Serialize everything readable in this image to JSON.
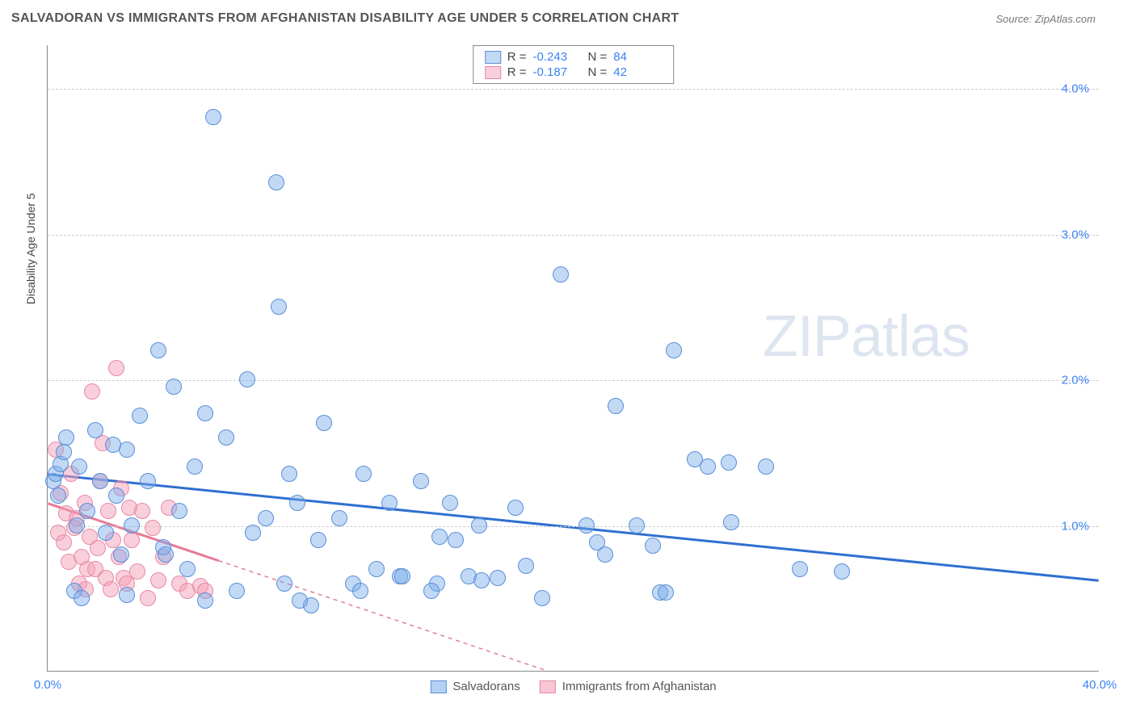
{
  "title": "SALVADORAN VS IMMIGRANTS FROM AFGHANISTAN DISABILITY AGE UNDER 5 CORRELATION CHART",
  "source_prefix": "Source: ",
  "source_name": "ZipAtlas.com",
  "y_axis_label": "Disability Age Under 5",
  "watermark": {
    "a": "ZIP",
    "b": "atlas"
  },
  "chart": {
    "type": "scatter",
    "background_color": "#ffffff",
    "grid_color": "#cccccc",
    "axis_color": "#888888",
    "tick_color": "#3b82f6",
    "tick_fontsize": 15,
    "label_fontsize": 14,
    "xlim": [
      0,
      40
    ],
    "ylim": [
      0,
      4.3
    ],
    "xticks": [
      {
        "v": 0,
        "label": "0.0%"
      },
      {
        "v": 40,
        "label": "40.0%"
      }
    ],
    "yticks": [
      {
        "v": 1.0,
        "label": "1.0%"
      },
      {
        "v": 2.0,
        "label": "2.0%"
      },
      {
        "v": 3.0,
        "label": "3.0%"
      },
      {
        "v": 4.0,
        "label": "4.0%"
      }
    ],
    "series": [
      {
        "name": "Salvadorans",
        "color_fill": "rgba(120,170,235,0.45)",
        "color_stroke": "#5a8fd6",
        "trend_color": "#2f6fd0",
        "trend_width": 3,
        "trend_dash": "none",
        "marker_radius": 10,
        "R": "-0.243",
        "N": "84",
        "trend": {
          "x1": 0,
          "y1": 1.35,
          "x2": 40,
          "y2": 0.62,
          "solid_to_x": 40
        },
        "points": [
          [
            0.2,
            1.3
          ],
          [
            0.3,
            1.35
          ],
          [
            0.4,
            1.2
          ],
          [
            0.5,
            1.42
          ],
          [
            0.6,
            1.5
          ],
          [
            0.7,
            1.6
          ],
          [
            1.0,
            0.55
          ],
          [
            1.1,
            1.0
          ],
          [
            1.2,
            1.4
          ],
          [
            1.3,
            0.5
          ],
          [
            1.5,
            1.1
          ],
          [
            1.8,
            1.65
          ],
          [
            2.0,
            1.3
          ],
          [
            2.2,
            0.95
          ],
          [
            2.5,
            1.55
          ],
          [
            2.6,
            1.2
          ],
          [
            2.8,
            0.8
          ],
          [
            3.0,
            1.52
          ],
          [
            3.2,
            1.0
          ],
          [
            3.5,
            1.75
          ],
          [
            3.8,
            1.3
          ],
          [
            4.2,
            2.2
          ],
          [
            4.4,
            0.85
          ],
          [
            4.8,
            1.95
          ],
          [
            5.0,
            1.1
          ],
          [
            5.3,
            0.7
          ],
          [
            5.6,
            1.4
          ],
          [
            6.0,
            1.77
          ],
          [
            6.3,
            3.8
          ],
          [
            6.8,
            1.6
          ],
          [
            7.2,
            0.55
          ],
          [
            7.6,
            2.0
          ],
          [
            8.3,
            1.05
          ],
          [
            8.7,
            3.35
          ],
          [
            8.8,
            2.5
          ],
          [
            9.0,
            0.6
          ],
          [
            9.2,
            1.35
          ],
          [
            9.5,
            1.15
          ],
          [
            10.0,
            0.45
          ],
          [
            10.3,
            0.9
          ],
          [
            10.5,
            1.7
          ],
          [
            11.1,
            1.05
          ],
          [
            11.6,
            0.6
          ],
          [
            12.0,
            1.35
          ],
          [
            12.5,
            0.7
          ],
          [
            13.0,
            1.15
          ],
          [
            13.4,
            0.65
          ],
          [
            13.5,
            0.65
          ],
          [
            14.2,
            1.3
          ],
          [
            14.8,
            0.6
          ],
          [
            14.9,
            0.92
          ],
          [
            15.3,
            1.15
          ],
          [
            15.5,
            0.9
          ],
          [
            16.0,
            0.65
          ],
          [
            16.4,
            1.0
          ],
          [
            16.5,
            0.62
          ],
          [
            17.1,
            0.64
          ],
          [
            17.8,
            1.12
          ],
          [
            18.2,
            0.72
          ],
          [
            18.8,
            0.5
          ],
          [
            19.5,
            2.72
          ],
          [
            20.5,
            1.0
          ],
          [
            20.9,
            0.88
          ],
          [
            21.2,
            0.8
          ],
          [
            21.6,
            1.82
          ],
          [
            22.4,
            1.0
          ],
          [
            23.0,
            0.86
          ],
          [
            23.3,
            0.54
          ],
          [
            23.5,
            0.54
          ],
          [
            23.8,
            2.2
          ],
          [
            24.6,
            1.45
          ],
          [
            25.1,
            1.4
          ],
          [
            25.9,
            1.43
          ],
          [
            26.0,
            1.02
          ],
          [
            27.3,
            1.4
          ],
          [
            28.6,
            0.7
          ],
          [
            30.2,
            0.68
          ],
          [
            6.0,
            0.48
          ],
          [
            7.8,
            0.95
          ],
          [
            9.6,
            0.48
          ],
          [
            11.9,
            0.55
          ],
          [
            14.6,
            0.55
          ],
          [
            4.5,
            0.8
          ],
          [
            3.0,
            0.52
          ]
        ]
      },
      {
        "name": "Immigrants from Afghanistan",
        "color_fill": "rgba(245,160,185,0.5)",
        "color_stroke": "#e68aa3",
        "trend_color": "#e77b96",
        "trend_width": 3,
        "trend_dash": "5,5",
        "marker_radius": 10,
        "R": "-0.187",
        "N": "42",
        "trend": {
          "x1": 0,
          "y1": 1.15,
          "x2": 19,
          "y2": 0.0,
          "solid_to_x": 6.5
        },
        "points": [
          [
            0.3,
            1.52
          ],
          [
            0.4,
            0.95
          ],
          [
            0.5,
            1.22
          ],
          [
            0.6,
            0.88
          ],
          [
            0.7,
            1.08
          ],
          [
            0.8,
            0.75
          ],
          [
            0.9,
            1.35
          ],
          [
            1.0,
            0.98
          ],
          [
            1.1,
            1.05
          ],
          [
            1.2,
            0.6
          ],
          [
            1.3,
            0.78
          ],
          [
            1.4,
            1.15
          ],
          [
            1.5,
            0.7
          ],
          [
            1.6,
            0.92
          ],
          [
            1.7,
            1.92
          ],
          [
            1.8,
            0.7
          ],
          [
            1.9,
            0.84
          ],
          [
            2.0,
            1.3
          ],
          [
            2.1,
            1.56
          ],
          [
            2.2,
            0.64
          ],
          [
            2.3,
            1.1
          ],
          [
            2.5,
            0.9
          ],
          [
            2.6,
            2.08
          ],
          [
            2.7,
            0.78
          ],
          [
            2.8,
            1.25
          ],
          [
            2.9,
            0.64
          ],
          [
            3.0,
            0.6
          ],
          [
            3.1,
            1.12
          ],
          [
            3.2,
            0.9
          ],
          [
            3.4,
            0.68
          ],
          [
            3.6,
            1.1
          ],
          [
            3.8,
            0.5
          ],
          [
            4.0,
            0.98
          ],
          [
            4.2,
            0.62
          ],
          [
            4.4,
            0.78
          ],
          [
            4.6,
            1.12
          ],
          [
            5.0,
            0.6
          ],
          [
            5.3,
            0.55
          ],
          [
            5.8,
            0.58
          ],
          [
            6.0,
            0.55
          ],
          [
            2.4,
            0.56
          ],
          [
            1.45,
            0.56
          ]
        ]
      }
    ],
    "legend_bottom": [
      {
        "label": "Salvadorans",
        "swatch": "rgba(120,170,235,0.55)",
        "border": "#5a8fd6"
      },
      {
        "label": "Immigrants from Afghanistan",
        "swatch": "rgba(245,160,185,0.6)",
        "border": "#e68aa3"
      }
    ]
  }
}
